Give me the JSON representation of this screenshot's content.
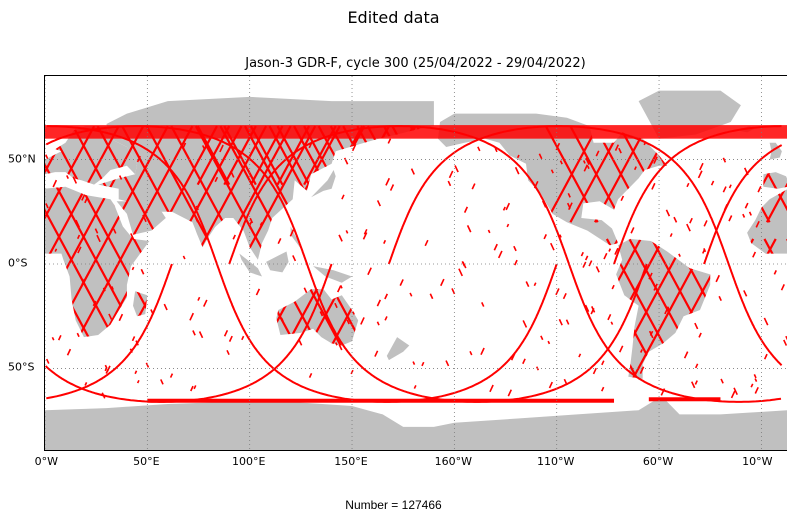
{
  "figure": {
    "suptitle": "Edited data",
    "map_title": "Jason-3 GDR-F, cycle 300 (25/04/2022 - 29/04/2022)",
    "footer": "Number = 127466"
  },
  "axes": {
    "x_ticks": [
      {
        "label": "0°W",
        "lon": 0
      },
      {
        "label": "50°E",
        "lon": 50
      },
      {
        "label": "100°E",
        "lon": 100
      },
      {
        "label": "150°E",
        "lon": 150
      },
      {
        "label": "160°W",
        "lon": 200
      },
      {
        "label": "110°W",
        "lon": 250
      },
      {
        "label": "60°W",
        "lon": 300
      },
      {
        "label": "10°W",
        "lon": 350
      }
    ],
    "y_ticks": [
      {
        "label": "50°N",
        "lat": 50
      },
      {
        "label": "0°S",
        "lat": 0
      },
      {
        "label": "50°S",
        "lat": -50
      }
    ],
    "lon_range": [
      0,
      363
    ],
    "lat_range": [
      -90,
      90
    ]
  },
  "colors": {
    "land": "#c0c0c0",
    "track": "#ff0000",
    "grid": "#7a7a7a"
  },
  "chart_data": {
    "type": "map",
    "projection": "plate-carree",
    "grid": true,
    "inclination_deg": 66.0,
    "orbit_tracks_lon0": [
      -38,
      90,
      168,
      278
    ]
  }
}
